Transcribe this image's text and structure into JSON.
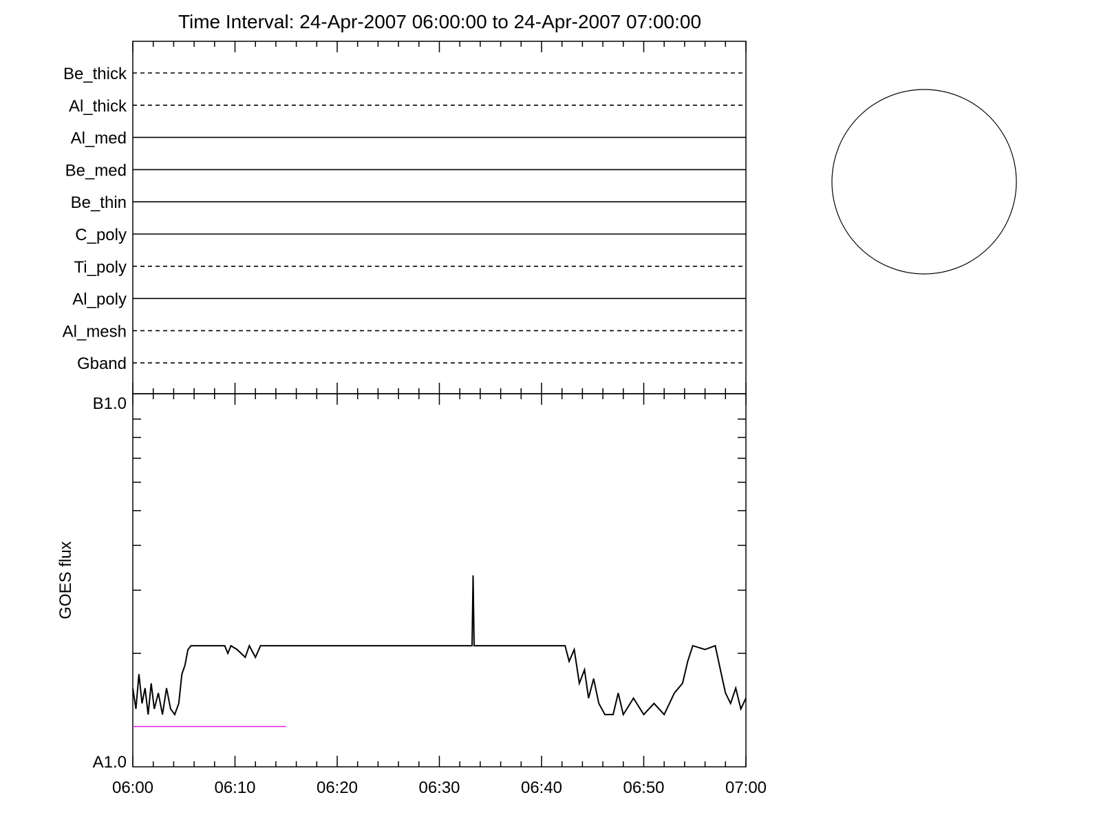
{
  "title": "Time Interval: 24-Apr-2007 06:00:00 to 24-Apr-2007 07:00:00",
  "chart_data": [
    {
      "type": "line",
      "panel": "filter-status",
      "rows": [
        {
          "name": "Be_thick",
          "style": "dashed"
        },
        {
          "name": "Al_thick",
          "style": "dashed"
        },
        {
          "name": "Al_med",
          "style": "solid"
        },
        {
          "name": "Be_med",
          "style": "solid"
        },
        {
          "name": "Be_thin",
          "style": "solid"
        },
        {
          "name": "C_poly",
          "style": "solid"
        },
        {
          "name": "Ti_poly",
          "style": "dashed"
        },
        {
          "name": "Al_poly",
          "style": "solid"
        },
        {
          "name": "Al_mesh",
          "style": "dashed"
        },
        {
          "name": "Gband",
          "style": "dashed"
        }
      ]
    },
    {
      "type": "line",
      "panel": "goes-flux",
      "ylabel": "GOES flux",
      "ylim_labels": [
        "A1.0",
        "B1.0"
      ],
      "ylim": [
        1e-08,
        1e-07
      ],
      "log_scale": true,
      "xlim_minutes": [
        0,
        60
      ],
      "x_tick_labels": [
        "06:00",
        "06:10",
        "06:20",
        "06:30",
        "06:40",
        "06:50",
        "07:00"
      ],
      "series": [
        {
          "color": "#000000",
          "points": [
            [
              0.0,
              1.6e-08
            ],
            [
              0.3,
              1.4e-08
            ],
            [
              0.6,
              1.75e-08
            ],
            [
              0.9,
              1.45e-08
            ],
            [
              1.2,
              1.6e-08
            ],
            [
              1.5,
              1.35e-08
            ],
            [
              1.8,
              1.65e-08
            ],
            [
              2.1,
              1.4e-08
            ],
            [
              2.5,
              1.55e-08
            ],
            [
              2.9,
              1.35e-08
            ],
            [
              3.3,
              1.6e-08
            ],
            [
              3.7,
              1.4e-08
            ],
            [
              4.1,
              1.35e-08
            ],
            [
              4.5,
              1.45e-08
            ],
            [
              4.8,
              1.75e-08
            ],
            [
              5.1,
              1.85e-08
            ],
            [
              5.4,
              2.05e-08
            ],
            [
              5.7,
              2.1e-08
            ],
            [
              6.5,
              2.1e-08
            ],
            [
              9.0,
              2.1e-08
            ],
            [
              9.3,
              2e-08
            ],
            [
              9.6,
              2.1e-08
            ],
            [
              10.2,
              2.05e-08
            ],
            [
              11.0,
              1.95e-08
            ],
            [
              11.4,
              2.1e-08
            ],
            [
              12.0,
              1.95e-08
            ],
            [
              12.5,
              2.1e-08
            ],
            [
              20.0,
              2.1e-08
            ],
            [
              33.2,
              2.1e-08
            ],
            [
              33.3,
              3.3e-08
            ],
            [
              33.4,
              2.1e-08
            ],
            [
              42.3,
              2.1e-08
            ],
            [
              42.7,
              1.9e-08
            ],
            [
              43.2,
              2.05e-08
            ],
            [
              43.7,
              1.65e-08
            ],
            [
              44.2,
              1.8e-08
            ],
            [
              44.6,
              1.5e-08
            ],
            [
              45.1,
              1.7e-08
            ],
            [
              45.6,
              1.45e-08
            ],
            [
              46.2,
              1.35e-08
            ],
            [
              47.0,
              1.35e-08
            ],
            [
              47.5,
              1.55e-08
            ],
            [
              48.0,
              1.35e-08
            ],
            [
              49.0,
              1.5e-08
            ],
            [
              50.0,
              1.35e-08
            ],
            [
              51.0,
              1.45e-08
            ],
            [
              52.0,
              1.35e-08
            ],
            [
              53.0,
              1.55e-08
            ],
            [
              53.8,
              1.65e-08
            ],
            [
              54.3,
              1.9e-08
            ],
            [
              54.8,
              2.1e-08
            ],
            [
              56.0,
              2.05e-08
            ],
            [
              57.0,
              2.1e-08
            ],
            [
              57.5,
              1.8e-08
            ],
            [
              58.0,
              1.55e-08
            ],
            [
              58.5,
              1.45e-08
            ],
            [
              59.0,
              1.6e-08
            ],
            [
              59.5,
              1.4e-08
            ],
            [
              60.0,
              1.5e-08
            ]
          ]
        },
        {
          "color": "#e020e0",
          "points": [
            [
              0.0,
              1.25e-08
            ],
            [
              15.0,
              1.25e-08
            ]
          ]
        }
      ]
    }
  ]
}
